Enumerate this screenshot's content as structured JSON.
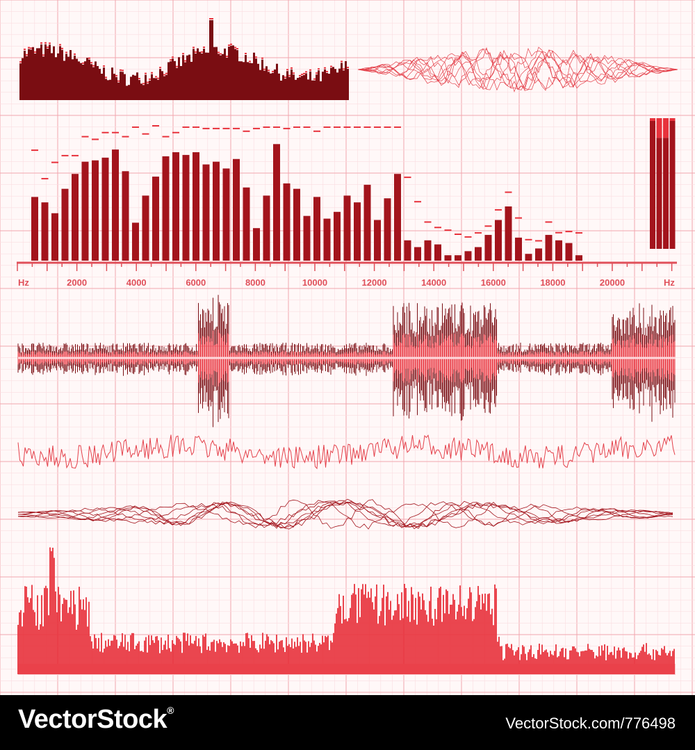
{
  "colors": {
    "background": "#fff8f8",
    "grid_major": "#f2a6ae",
    "grid_minor": "#fbdde0",
    "dark_bar": "#7a0d12",
    "bar": "#a3141c",
    "peak": "#e8323c",
    "axis": "#e0505a",
    "wave": "#e4404a",
    "footer_bg": "#000000",
    "footer_text": "#ffffff"
  },
  "footer": {
    "brand": "VectorStock",
    "registered": "®",
    "url": "VectorStock.com/776498"
  },
  "chart_data": [
    {
      "name_hint": "spectrum-analyzer",
      "type": "bar",
      "x_unit_left": "Hz",
      "x_unit_right": "Hz",
      "tick_labels": [
        "2000",
        "4000",
        "6000",
        "8000",
        "10000",
        "12000",
        "14000",
        "16000",
        "18000",
        "20000"
      ],
      "xlim": [
        0,
        22000
      ],
      "ylim": [
        0,
        100
      ],
      "values": [
        47,
        43,
        35,
        53,
        64,
        73,
        74,
        76,
        82,
        66,
        28,
        48,
        62,
        77,
        80,
        78,
        80,
        71,
        73,
        68,
        75,
        54,
        24,
        48,
        86,
        57,
        53,
        33,
        47,
        31,
        36,
        48,
        43,
        56,
        30,
        46,
        64,
        15,
        10,
        15,
        12,
        4,
        4,
        7,
        10,
        19,
        30,
        40,
        17,
        5,
        9,
        19,
        15,
        13,
        4
      ],
      "peaks": [
        82,
        61,
        73,
        78,
        78,
        92,
        90,
        95,
        95,
        92,
        99,
        94,
        100,
        92,
        95,
        99,
        99,
        98,
        98,
        98,
        98,
        96,
        98,
        99,
        99,
        98,
        99,
        99,
        96,
        99,
        99,
        99,
        99,
        99,
        99,
        99,
        99,
        62,
        44,
        29,
        25,
        23,
        20,
        18,
        21,
        26,
        38,
        51,
        32,
        16,
        12,
        29,
        18,
        22,
        21
      ]
    },
    {
      "name_hint": "level-meter",
      "type": "bar",
      "values": [
        100,
        85,
        85,
        100
      ],
      "peaks": [
        100,
        100,
        100,
        100
      ],
      "ylim": [
        0,
        100
      ]
    }
  ]
}
